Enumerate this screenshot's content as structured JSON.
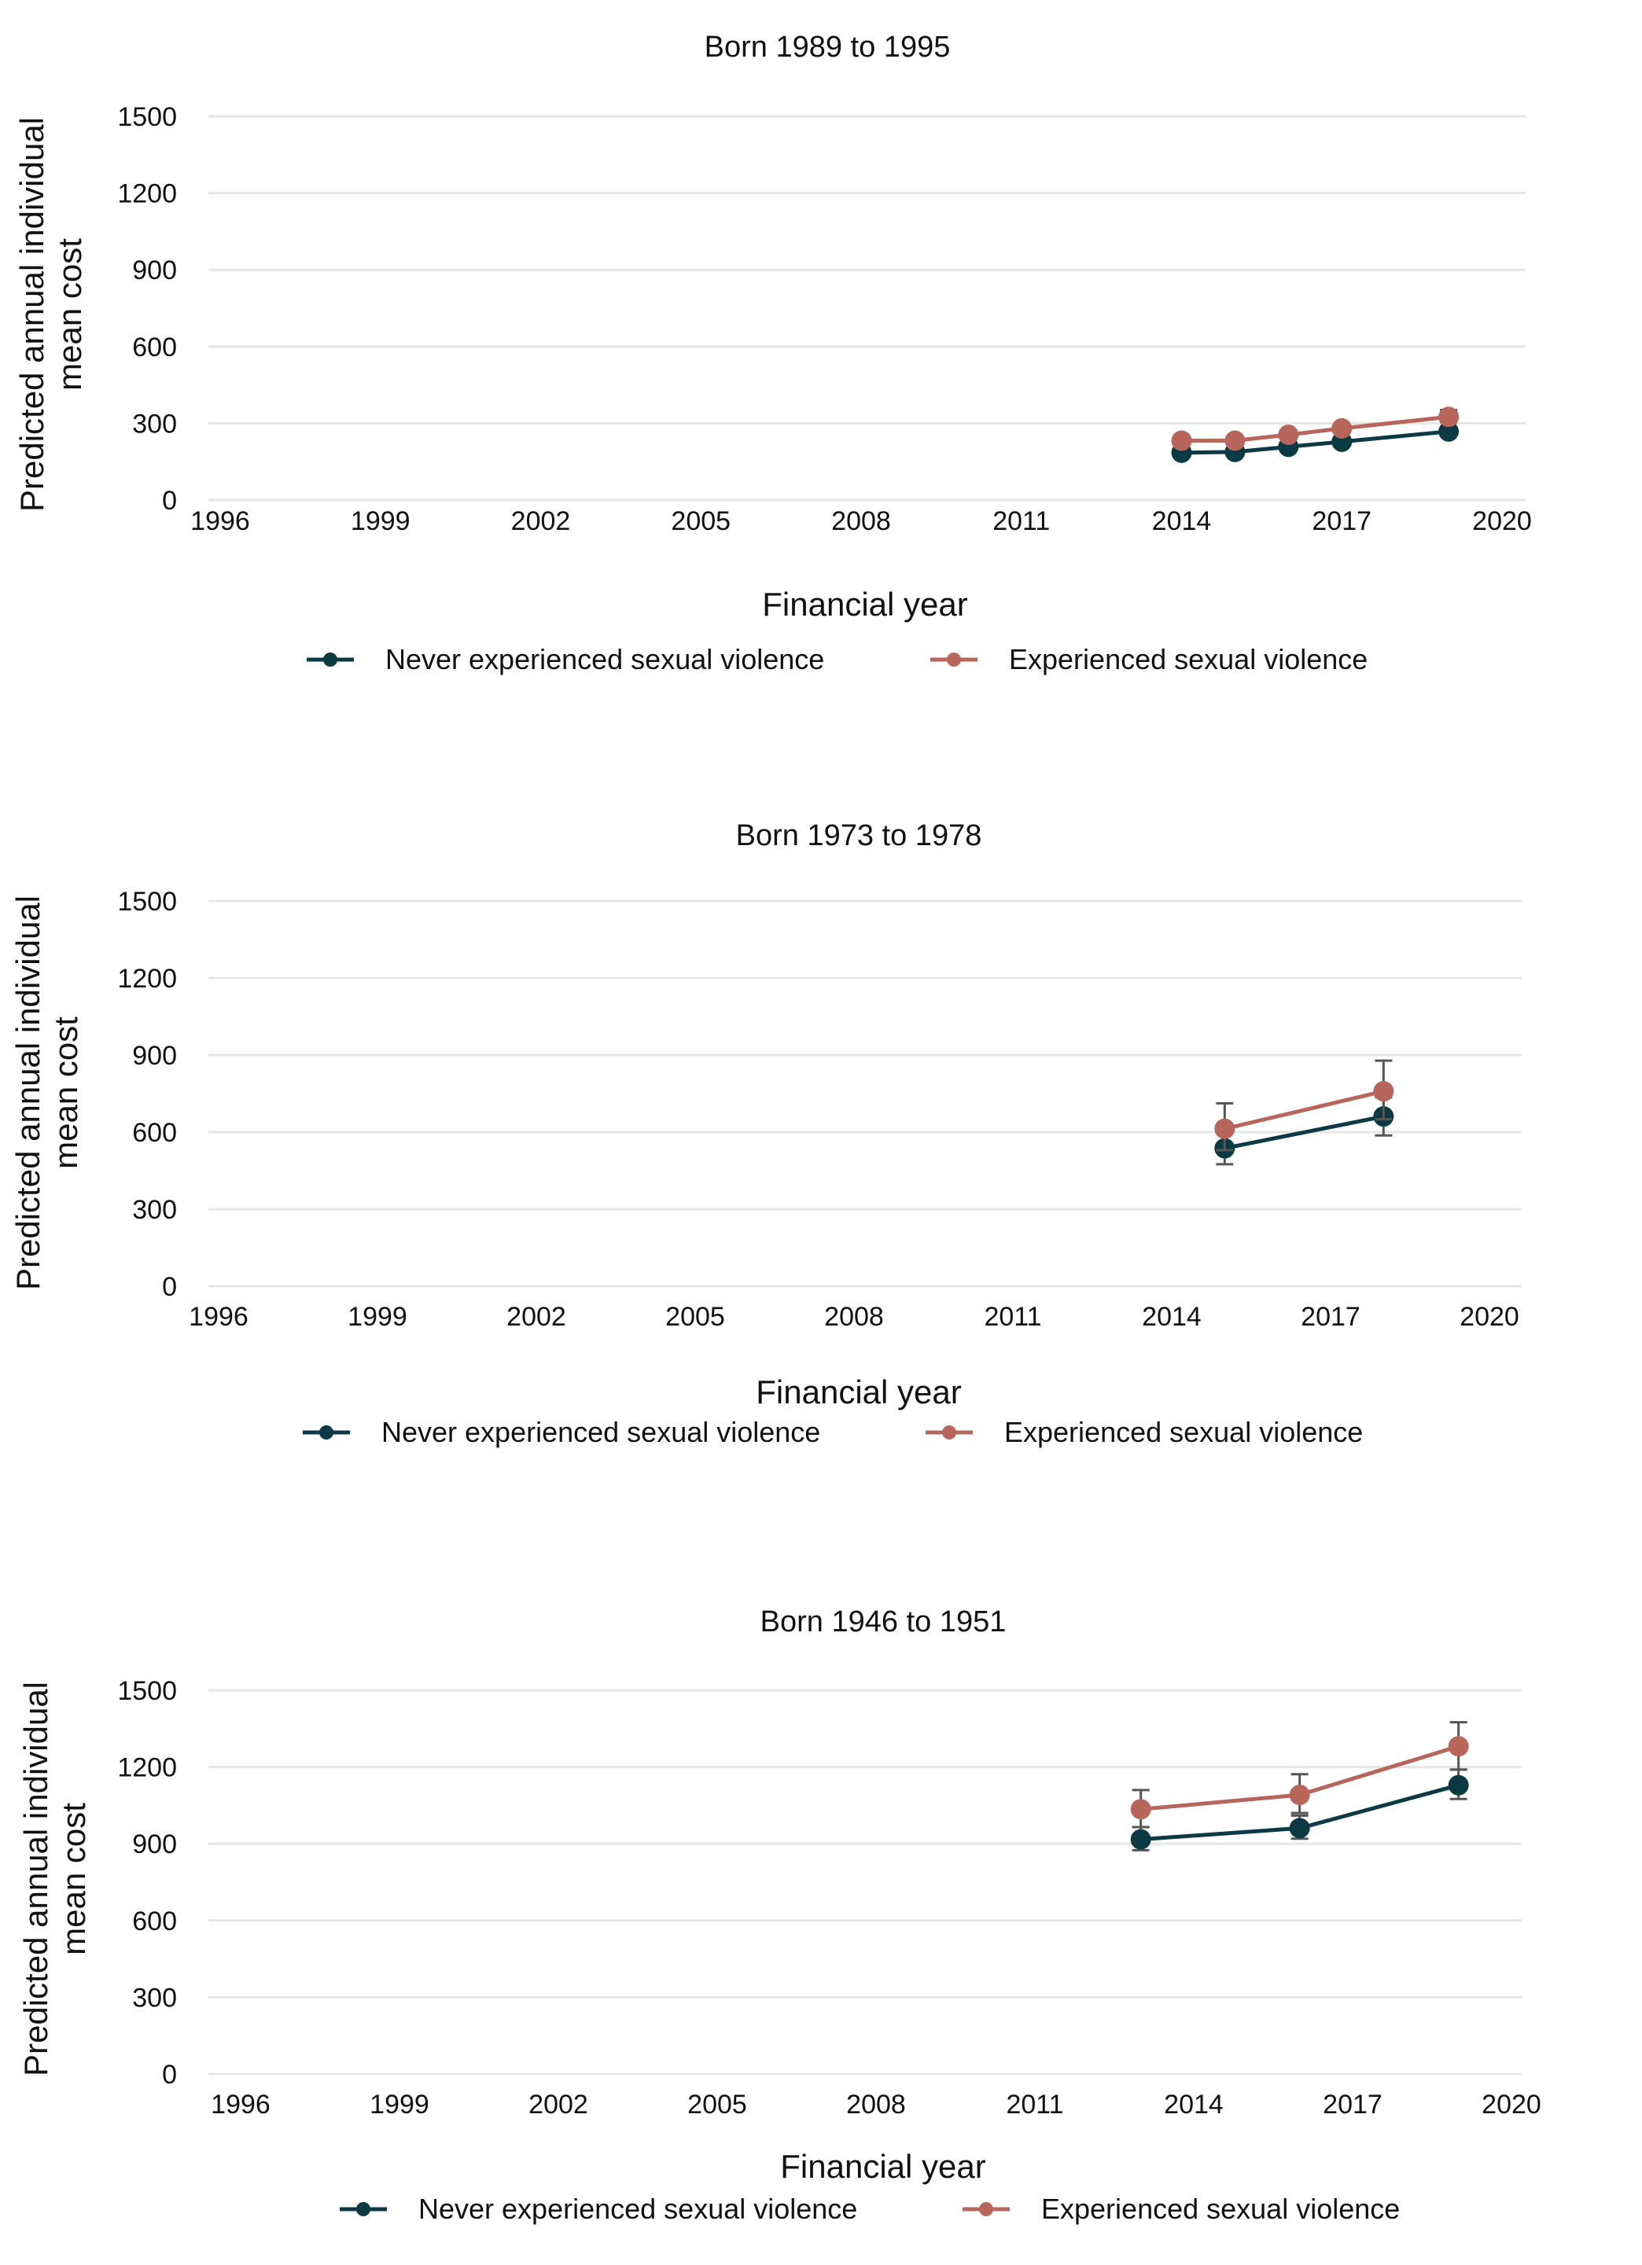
{
  "colors": {
    "never": "#0b3a44",
    "experienced": "#b8665b",
    "grid": "#e6e6e6",
    "errorbar": "#555555"
  },
  "chart_data": [
    {
      "type": "line",
      "title": "Born 1989 to 1995",
      "xlabel": "Financial year",
      "ylabel_lines": [
        "Predicted annual individual",
        "mean cost"
      ],
      "xticks": [
        "1996",
        "1999",
        "2002",
        "2005",
        "2008",
        "2011",
        "2014",
        "2017",
        "2020"
      ],
      "yticks": [
        "0",
        "300",
        "600",
        "900",
        "1200",
        "1500"
      ],
      "xlim": [
        1996,
        2020
      ],
      "ylim": [
        0,
        1500
      ],
      "grid": true,
      "legend": "bottom",
      "series": [
        {
          "name": "Never experienced sexual violence",
          "color_key": "never",
          "x": [
            2014,
            2015,
            2016,
            2017,
            2019
          ],
          "y": [
            185,
            188,
            208,
            228,
            268
          ],
          "err_low": [
            175,
            178,
            197,
            216,
            255
          ],
          "err_high": [
            196,
            198,
            219,
            240,
            281
          ]
        },
        {
          "name": "Experienced sexual violence",
          "color_key": "experienced",
          "x": [
            2014,
            2015,
            2016,
            2017,
            2019
          ],
          "y": [
            232,
            232,
            255,
            280,
            325
          ],
          "err_low": [
            220,
            220,
            242,
            266,
            304
          ],
          "err_high": [
            245,
            245,
            268,
            296,
            352
          ]
        }
      ]
    },
    {
      "type": "line",
      "title": "Born 1973 to 1978",
      "xlabel": "Financial year",
      "ylabel_lines": [
        "Predicted annual individual",
        "mean cost"
      ],
      "xticks": [
        "1996",
        "1999",
        "2002",
        "2005",
        "2008",
        "2011",
        "2014",
        "2017",
        "2020"
      ],
      "yticks": [
        "0",
        "300",
        "600",
        "900",
        "1200",
        "1500"
      ],
      "xlim": [
        1996,
        2020
      ],
      "ylim": [
        0,
        1500
      ],
      "grid": true,
      "legend": "bottom",
      "series": [
        {
          "name": "Never experienced sexual violence",
          "color_key": "never",
          "x": [
            2015,
            2018
          ],
          "y": [
            537,
            661
          ],
          "err_low": [
            475,
            587
          ],
          "err_high": [
            600,
            735
          ]
        },
        {
          "name": "Experienced sexual violence",
          "color_key": "experienced",
          "x": [
            2015,
            2018
          ],
          "y": [
            613,
            759
          ],
          "err_low": [
            530,
            650
          ],
          "err_high": [
            712,
            878
          ]
        }
      ]
    },
    {
      "type": "line",
      "title": "Born 1946 to 1951",
      "xlabel": "Financial year",
      "ylabel_lines": [
        "Predicted annual individual",
        "mean cost"
      ],
      "xticks": [
        "1996",
        "1999",
        "2002",
        "2005",
        "2008",
        "2011",
        "2014",
        "2017",
        "2020"
      ],
      "yticks": [
        "0",
        "300",
        "600",
        "900",
        "1200",
        "1500"
      ],
      "xlim": [
        1996,
        2020
      ],
      "ylim": [
        0,
        1500
      ],
      "grid": true,
      "legend": "bottom",
      "series": [
        {
          "name": "Never experienced sexual violence",
          "color_key": "never",
          "x": [
            2013,
            2016,
            2019
          ],
          "y": [
            917,
            961,
            1129
          ],
          "err_low": [
            875,
            920,
            1075
          ],
          "err_high": [
            965,
            1010,
            1190
          ]
        },
        {
          "name": "Experienced sexual violence",
          "color_key": "experienced",
          "x": [
            2013,
            2016,
            2019
          ],
          "y": [
            1035,
            1091,
            1281
          ],
          "err_low": [
            965,
            1020,
            1190
          ],
          "err_high": [
            1110,
            1172,
            1375
          ]
        }
      ]
    }
  ]
}
